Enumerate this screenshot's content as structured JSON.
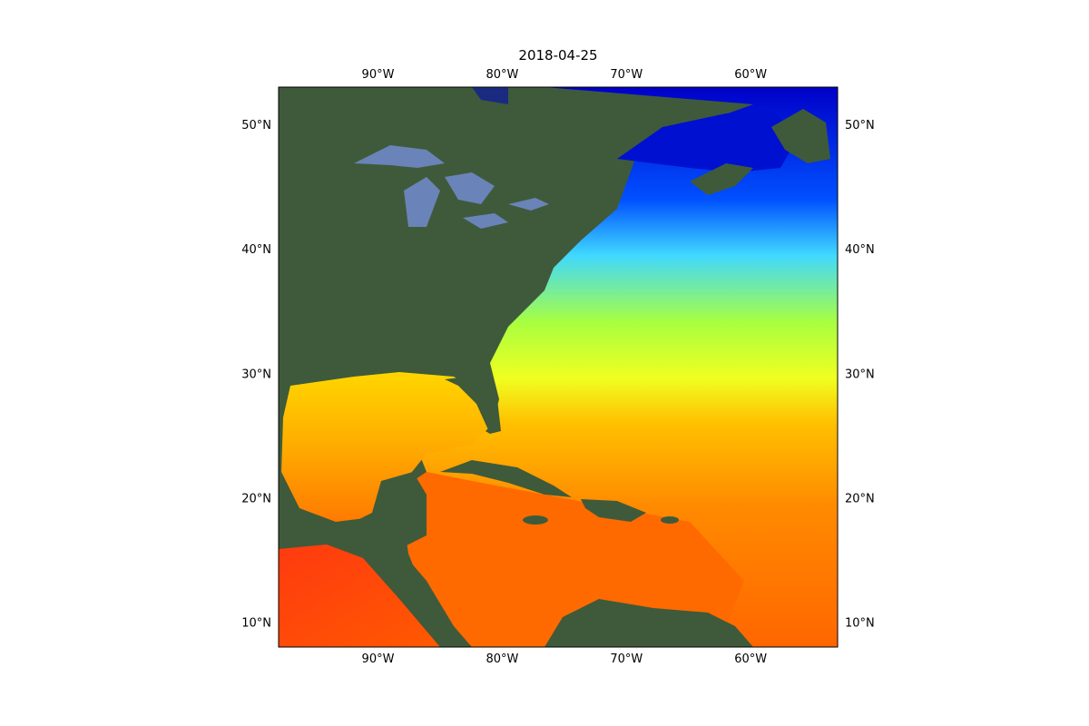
{
  "title": "2018-04-25",
  "map": {
    "lon_range": [
      -98,
      -53
    ],
    "lat_range": [
      8,
      53
    ],
    "lon_ticks": [
      {
        "value": -90,
        "label": "90°W"
      },
      {
        "value": -80,
        "label": "80°W"
      },
      {
        "value": -70,
        "label": "70°W"
      },
      {
        "value": -60,
        "label": "60°W"
      }
    ],
    "lat_ticks": [
      {
        "value": 50,
        "label": "50°N"
      },
      {
        "value": 40,
        "label": "40°N"
      },
      {
        "value": 30,
        "label": "30°N"
      },
      {
        "value": 20,
        "label": "20°N"
      },
      {
        "value": 10,
        "label": "10°N"
      }
    ],
    "colors": {
      "land": "#3f5a3a",
      "lakes": "#6a83b8",
      "sst_cold": "#0000cc",
      "sst_cool": "#00e0ff",
      "sst_mild": "#a8ff40",
      "sst_warm": "#ffd000",
      "sst_hot": "#ff7800",
      "sst_hottest": "#ff2000"
    }
  }
}
